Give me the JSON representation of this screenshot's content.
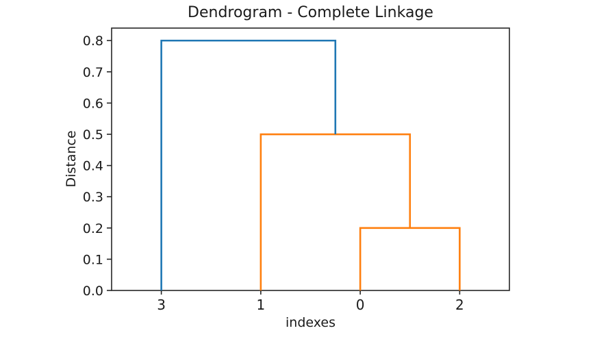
{
  "figure": {
    "background": "#ffffff",
    "text_color": "#1a1a1a",
    "spine_color": "#262626"
  },
  "chart_data": {
    "type": "dendrogram",
    "title": "Dendrogram - Complete Linkage",
    "xlabel": "indexes",
    "ylabel": "Distance",
    "grid": false,
    "legend": "none",
    "leaf_labels": [
      "3",
      "1",
      "0",
      "2"
    ],
    "leaf_x": [
      5,
      15,
      25,
      35
    ],
    "xlim": [
      0,
      40
    ],
    "ylim": [
      0,
      0.84
    ],
    "yticks": [
      0.0,
      0.1,
      0.2,
      0.3,
      0.4,
      0.5,
      0.6,
      0.7,
      0.8
    ],
    "ytick_labels": [
      "0.0",
      "0.1",
      "0.2",
      "0.3",
      "0.4",
      "0.5",
      "0.6",
      "0.7",
      "0.8"
    ],
    "colors": {
      "above_threshold_link": "#1f77b4",
      "cluster_link": "#ff7f0e"
    },
    "links": [
      {
        "merges": [
          "0",
          "2"
        ],
        "x1": 25,
        "base1": 0.0,
        "x2": 35,
        "base2": 0.0,
        "height": 0.2,
        "color": "#ff7f0e"
      },
      {
        "merges": [
          "1",
          "0+2"
        ],
        "x1": 15,
        "base1": 0.0,
        "x2": 30,
        "base2": 0.2,
        "height": 0.5,
        "color": "#ff7f0e"
      },
      {
        "merges": [
          "3",
          "1+0+2"
        ],
        "x1": 5,
        "base1": 0.0,
        "x2": 22.5,
        "base2": 0.5,
        "height": 0.8,
        "color": "#1f77b4"
      }
    ]
  }
}
